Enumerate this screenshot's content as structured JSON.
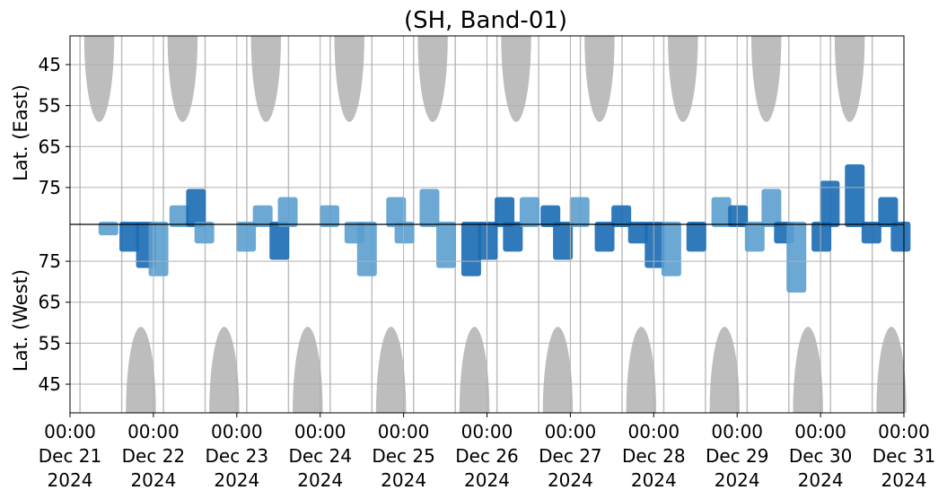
{
  "chart_data": {
    "type": "heatmap",
    "title": "(SH, Band-01)",
    "ylabel_top": "Lat. (East)",
    "ylabel_bottom": "Lat. (West)",
    "grid": true,
    "colors": {
      "daylight_mask": "#bdbdbd",
      "detection_light": "#5b9fcf",
      "detection_dark": "#1a6bb5",
      "grid": "#b0b0b0",
      "midline": "#000000"
    },
    "x_ticks": [
      {
        "time": "00:00",
        "date": "Dec 21",
        "year": "2024"
      },
      {
        "time": "00:00",
        "date": "Dec 22",
        "year": "2024"
      },
      {
        "time": "00:00",
        "date": "Dec 23",
        "year": "2024"
      },
      {
        "time": "00:00",
        "date": "Dec 24",
        "year": "2024"
      },
      {
        "time": "00:00",
        "date": "Dec 25",
        "year": "2024"
      },
      {
        "time": "00:00",
        "date": "Dec 26",
        "year": "2024"
      },
      {
        "time": "00:00",
        "date": "Dec 27",
        "year": "2024"
      },
      {
        "time": "00:00",
        "date": "Dec 28",
        "year": "2024"
      },
      {
        "time": "00:00",
        "date": "Dec 29",
        "year": "2024"
      },
      {
        "time": "00:00",
        "date": "Dec 30",
        "year": "2024"
      },
      {
        "time": "00:00",
        "date": "Dec 31",
        "year": "2024"
      }
    ],
    "x_range": [
      "2024-12-21 00:00",
      "2024-12-31 00:00"
    ],
    "y_ticks_east": [
      "45",
      "55",
      "65",
      "75"
    ],
    "y_ticks_west": [
      "75",
      "65",
      "55",
      "45"
    ],
    "y_range_east": [
      38,
      84
    ],
    "y_range_west": [
      84,
      38
    ],
    "daylight_mask_east": [
      {
        "day_offset": 0.35,
        "min_lat": 59
      },
      {
        "day_offset": 1.35,
        "min_lat": 59
      },
      {
        "day_offset": 2.35,
        "min_lat": 59
      },
      {
        "day_offset": 3.35,
        "min_lat": 59
      },
      {
        "day_offset": 4.35,
        "min_lat": 59
      },
      {
        "day_offset": 5.35,
        "min_lat": 59
      },
      {
        "day_offset": 6.35,
        "min_lat": 59
      },
      {
        "day_offset": 7.35,
        "min_lat": 59
      },
      {
        "day_offset": 8.35,
        "min_lat": 59
      },
      {
        "day_offset": 9.35,
        "min_lat": 59
      }
    ],
    "daylight_mask_west": [
      {
        "day_offset": 0.85,
        "min_lat": 59
      },
      {
        "day_offset": 1.85,
        "min_lat": 59
      },
      {
        "day_offset": 2.85,
        "min_lat": 59
      },
      {
        "day_offset": 3.85,
        "min_lat": 59
      },
      {
        "day_offset": 4.85,
        "min_lat": 59
      },
      {
        "day_offset": 5.85,
        "min_lat": 59
      },
      {
        "day_offset": 6.85,
        "min_lat": 59
      },
      {
        "day_offset": 7.85,
        "min_lat": 59
      },
      {
        "day_offset": 8.85,
        "min_lat": 59
      },
      {
        "day_offset": 9.85,
        "min_lat": 59
      }
    ],
    "detections": [
      {
        "day": 0.45,
        "west_lat": 82,
        "strength": 0.5
      },
      {
        "day": 0.7,
        "west_lat": 78,
        "strength": 1
      },
      {
        "day": 0.9,
        "west_lat": 74,
        "strength": 1
      },
      {
        "day": 1.05,
        "west_lat": 72,
        "strength": 0.5
      },
      {
        "day": 1.3,
        "east_lat": 80,
        "strength": 0.5
      },
      {
        "day": 1.5,
        "east_lat": 76,
        "strength": 1
      },
      {
        "day": 1.6,
        "west_lat": 80,
        "strength": 0.5
      },
      {
        "day": 2.1,
        "west_lat": 78,
        "strength": 0.5
      },
      {
        "day": 2.3,
        "east_lat": 80,
        "strength": 0.5
      },
      {
        "day": 2.5,
        "west_lat": 76,
        "strength": 1
      },
      {
        "day": 2.6,
        "east_lat": 78,
        "strength": 0.5
      },
      {
        "day": 3.1,
        "east_lat": 80,
        "strength": 0.5
      },
      {
        "day": 3.4,
        "west_lat": 80,
        "strength": 0.5
      },
      {
        "day": 3.55,
        "west_lat": 72,
        "strength": 0.5
      },
      {
        "day": 3.9,
        "east_lat": 78,
        "strength": 0.5
      },
      {
        "day": 4.0,
        "west_lat": 80,
        "strength": 0.5
      },
      {
        "day": 4.3,
        "east_lat": 76,
        "strength": 0.5
      },
      {
        "day": 4.5,
        "west_lat": 74,
        "strength": 0.5
      },
      {
        "day": 4.8,
        "west_lat": 72,
        "strength": 1
      },
      {
        "day": 5.0,
        "west_lat": 76,
        "strength": 1
      },
      {
        "day": 5.2,
        "east_lat": 78,
        "strength": 1
      },
      {
        "day": 5.3,
        "west_lat": 78,
        "strength": 1
      },
      {
        "day": 5.5,
        "east_lat": 78,
        "strength": 0.5
      },
      {
        "day": 5.75,
        "east_lat": 80,
        "strength": 1
      },
      {
        "day": 5.9,
        "west_lat": 76,
        "strength": 1
      },
      {
        "day": 6.1,
        "east_lat": 78,
        "strength": 0.5
      },
      {
        "day": 6.4,
        "west_lat": 78,
        "strength": 1
      },
      {
        "day": 6.6,
        "east_lat": 80,
        "strength": 1
      },
      {
        "day": 6.8,
        "west_lat": 80,
        "strength": 1
      },
      {
        "day": 7.0,
        "west_lat": 74,
        "strength": 1
      },
      {
        "day": 7.2,
        "west_lat": 72,
        "strength": 0.5
      },
      {
        "day": 7.5,
        "west_lat": 78,
        "strength": 1
      },
      {
        "day": 7.8,
        "east_lat": 78,
        "strength": 0.5
      },
      {
        "day": 8.0,
        "east_lat": 80,
        "strength": 1
      },
      {
        "day": 8.2,
        "west_lat": 78,
        "strength": 0.5
      },
      {
        "day": 8.4,
        "east_lat": 76,
        "strength": 0.5
      },
      {
        "day": 8.55,
        "west_lat": 80,
        "strength": 1
      },
      {
        "day": 8.7,
        "west_lat": 68,
        "strength": 0.5
      },
      {
        "day": 9.0,
        "west_lat": 78,
        "strength": 1
      },
      {
        "day": 9.1,
        "east_lat": 74,
        "strength": 1
      },
      {
        "day": 9.4,
        "east_lat": 70,
        "strength": 1
      },
      {
        "day": 9.6,
        "west_lat": 80,
        "strength": 1
      },
      {
        "day": 9.8,
        "east_lat": 78,
        "strength": 1
      },
      {
        "day": 9.95,
        "west_lat": 78,
        "strength": 1
      }
    ]
  }
}
